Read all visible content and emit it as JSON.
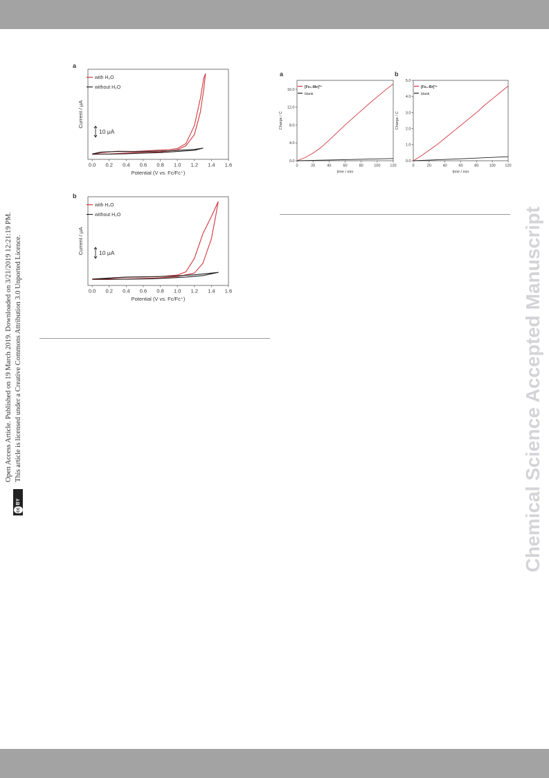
{
  "side_notice": {
    "line1": "Open Access Article. Published on 19 March 2019. Downloaded on 3/21/2019 12:21:19 PM.",
    "badge": "cc BY",
    "line2": "This article is licensed under a Creative Commons Attribution 3.0 Unported Licence."
  },
  "watermark": "Chemical Science Accepted Manuscript",
  "colors": {
    "with_water": "#d0353b",
    "without_water": "#222222",
    "header_bar": "#a3a3a3"
  },
  "chart_data": [
    {
      "type": "line",
      "panel": "a",
      "xlabel": "Potential (V vs. Fc/Fc⁺)",
      "ylabel": "Current / μA",
      "xlim": [
        -0.05,
        1.6
      ],
      "x_ticks": [
        "0.0",
        "0.2",
        "0.4",
        "0.6",
        "0.8",
        "1.0",
        "1.2",
        "1.4",
        "1.6"
      ],
      "scale_bar": "10 μA",
      "legend_position": "top-left",
      "series": [
        {
          "name": "with H₂O",
          "color": "#d0353b",
          "forward": [
            [
              0.0,
              -0.8
            ],
            [
              0.1,
              0.0
            ],
            [
              0.3,
              0.6
            ],
            [
              0.5,
              0.5
            ],
            [
              0.7,
              0.9
            ],
            [
              0.9,
              1.3
            ],
            [
              1.0,
              1.8
            ],
            [
              1.1,
              4.0
            ],
            [
              1.2,
              12.0
            ],
            [
              1.27,
              24.0
            ],
            [
              1.31,
              33.0
            ],
            [
              1.33,
              35.0
            ]
          ],
          "reverse": [
            [
              1.33,
              35.0
            ],
            [
              1.31,
              28.0
            ],
            [
              1.27,
              18.0
            ],
            [
              1.2,
              8.0
            ],
            [
              1.1,
              3.0
            ],
            [
              1.0,
              1.2
            ],
            [
              0.8,
              0.3
            ],
            [
              0.6,
              0.1
            ],
            [
              0.4,
              -0.2
            ],
            [
              0.2,
              -0.6
            ],
            [
              0.0,
              -0.8
            ]
          ]
        },
        {
          "name": "without H₂O",
          "color": "#222222",
          "forward": [
            [
              0.0,
              -0.6
            ],
            [
              0.1,
              0.2
            ],
            [
              0.3,
              0.5
            ],
            [
              0.5,
              0.4
            ],
            [
              0.7,
              0.6
            ],
            [
              0.9,
              0.8
            ],
            [
              1.1,
              1.2
            ],
            [
              1.2,
              1.4
            ],
            [
              1.3,
              2.0
            ]
          ],
          "reverse": [
            [
              1.3,
              2.0
            ],
            [
              1.2,
              1.0
            ],
            [
              1.0,
              0.5
            ],
            [
              0.8,
              0.0
            ],
            [
              0.6,
              -0.2
            ],
            [
              0.4,
              -0.5
            ],
            [
              0.2,
              -0.7
            ],
            [
              0.0,
              -0.6
            ]
          ]
        }
      ]
    },
    {
      "type": "line",
      "panel": "b",
      "xlabel": "Potential (V vs. Fc/Fc⁺)",
      "ylabel": "Current / μA",
      "xlim": [
        -0.05,
        1.6
      ],
      "x_ticks": [
        "0.0",
        "0.2",
        "0.4",
        "0.6",
        "0.8",
        "1.0",
        "1.2",
        "1.4",
        "1.6"
      ],
      "scale_bar": "10 μA",
      "legend_position": "top-left",
      "series": [
        {
          "name": "with H₂O",
          "color": "#d0353b",
          "forward": [
            [
              0.0,
              -0.6
            ],
            [
              0.2,
              -0.2
            ],
            [
              0.4,
              0.3
            ],
            [
              0.6,
              0.4
            ],
            [
              0.8,
              0.6
            ],
            [
              1.0,
              1.2
            ],
            [
              1.1,
              2.5
            ],
            [
              1.2,
              8.0
            ],
            [
              1.3,
              18.0
            ],
            [
              1.4,
              25.0
            ],
            [
              1.48,
              31.0
            ]
          ],
          "reverse": [
            [
              1.48,
              31.0
            ],
            [
              1.45,
              25.0
            ],
            [
              1.4,
              16.0
            ],
            [
              1.3,
              6.0
            ],
            [
              1.2,
              2.0
            ],
            [
              1.0,
              0.6
            ],
            [
              0.8,
              0.1
            ],
            [
              0.6,
              -0.2
            ],
            [
              0.4,
              -0.4
            ],
            [
              0.2,
              -0.6
            ],
            [
              0.0,
              -0.6
            ]
          ]
        },
        {
          "name": "without H₂O",
          "color": "#222222",
          "forward": [
            [
              0.0,
              -0.4
            ],
            [
              0.2,
              0.0
            ],
            [
              0.4,
              0.4
            ],
            [
              0.6,
              0.5
            ],
            [
              0.8,
              0.6
            ],
            [
              1.0,
              0.9
            ],
            [
              1.2,
              1.3
            ],
            [
              1.4,
              2.0
            ],
            [
              1.48,
              2.3
            ]
          ],
          "reverse": [
            [
              1.48,
              2.3
            ],
            [
              1.3,
              1.0
            ],
            [
              1.1,
              0.4
            ],
            [
              0.9,
              0.0
            ],
            [
              0.7,
              -0.3
            ],
            [
              0.5,
              -0.4
            ],
            [
              0.3,
              -0.5
            ],
            [
              0.0,
              -0.4
            ]
          ]
        }
      ]
    },
    {
      "type": "line",
      "panel": "a",
      "xlabel": "time / min",
      "ylabel": "Charge / C",
      "xlim": [
        0,
        120
      ],
      "ylim": [
        0,
        18
      ],
      "x_ticks": [
        "0",
        "20",
        "40",
        "60",
        "80",
        "100",
        "120"
      ],
      "y_ticks": [
        "0.0",
        "4.0",
        "8.0",
        "12.0",
        "16.0"
      ],
      "legend_position": "top-left",
      "series": [
        {
          "name": "[Fe₆-Me]³⁺",
          "color": "#d0353b",
          "points": [
            [
              0,
              0.0
            ],
            [
              10,
              0.7
            ],
            [
              20,
              1.7
            ],
            [
              30,
              3.0
            ],
            [
              40,
              4.6
            ],
            [
              50,
              6.3
            ],
            [
              60,
              8.0
            ],
            [
              70,
              9.6
            ],
            [
              80,
              11.2
            ],
            [
              90,
              12.8
            ],
            [
              100,
              14.3
            ],
            [
              110,
              15.8
            ],
            [
              120,
              17.2
            ]
          ]
        },
        {
          "name": "blank",
          "color": "#222222",
          "points": [
            [
              0,
              0.0
            ],
            [
              60,
              0.25
            ],
            [
              120,
              0.5
            ]
          ]
        }
      ]
    },
    {
      "type": "line",
      "panel": "b",
      "xlabel": "time / min",
      "ylabel": "Charge / C",
      "xlim": [
        0,
        120
      ],
      "ylim": [
        0,
        5
      ],
      "x_ticks": [
        "0",
        "20",
        "40",
        "60",
        "80",
        "100",
        "120"
      ],
      "y_ticks": [
        "0.0",
        "1.0",
        "2.0",
        "3.0",
        "4.0",
        "5.0"
      ],
      "legend_position": "top-left",
      "series": [
        {
          "name": "[Fe₆-Br]³⁺",
          "color": "#d0353b",
          "points": [
            [
              0,
              0.0
            ],
            [
              10,
              0.3
            ],
            [
              20,
              0.65
            ],
            [
              30,
              1.0
            ],
            [
              40,
              1.4
            ],
            [
              50,
              1.8
            ],
            [
              60,
              2.2
            ],
            [
              70,
              2.6
            ],
            [
              80,
              3.0
            ],
            [
              90,
              3.45
            ],
            [
              100,
              3.85
            ],
            [
              110,
              4.25
            ],
            [
              120,
              4.65
            ]
          ]
        },
        {
          "name": "blank",
          "color": "#222222",
          "points": [
            [
              0,
              0.0
            ],
            [
              60,
              0.12
            ],
            [
              120,
              0.25
            ]
          ]
        }
      ]
    }
  ]
}
